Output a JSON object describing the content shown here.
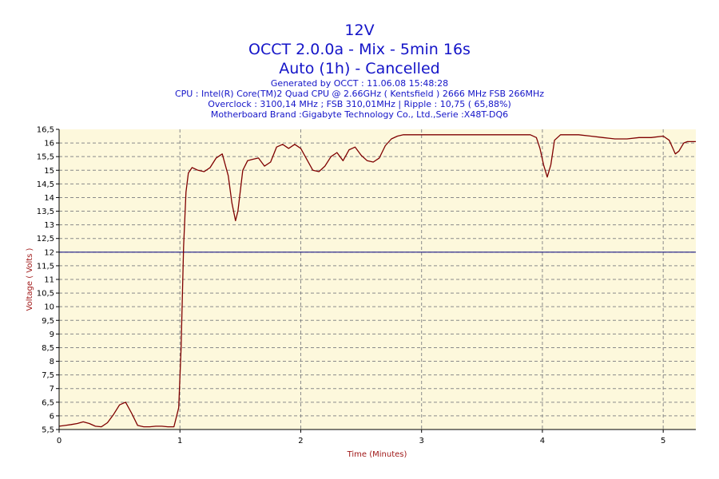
{
  "header": {
    "title": "12V",
    "line2": "OCCT 2.0.0a - Mix - 5min 16s",
    "line3": "Auto (1h) - Cancelled",
    "generated": "Generated by OCCT : 11.06.08 15:48:28",
    "cpu": "CPU : Intel(R) Core(TM)2 Quad CPU @ 2.66GHz ( Kentsfield ) 2666 MHz FSB 266MHz",
    "overclock": "Overclock : 3100,14 MHz ; FSB 310,01MHz | Ripple : 10,75 ( 65,88%)",
    "motherboard": "Motherboard Brand :Gigabyte Technology Co., Ltd.,Serie :X48T-DQ6"
  },
  "chart_data": {
    "type": "line",
    "xlabel": "Time (Minutes)",
    "ylabel": "Voltage ( Volts )",
    "xlim": [
      0,
      5.27
    ],
    "ylim": [
      5.5,
      16.5
    ],
    "x_ticks": [
      "0",
      "1",
      "2",
      "3",
      "4",
      "5"
    ],
    "y_ticks": [
      "5,5",
      "6",
      "6,5",
      "7",
      "7,5",
      "8",
      "8,5",
      "9",
      "9,5",
      "10",
      "10,5",
      "11",
      "11,5",
      "12",
      "12,5",
      "13",
      "13,5",
      "14",
      "14,5",
      "15",
      "15,5",
      "16",
      "16,5"
    ],
    "grid": true,
    "reference_line": {
      "y": 12,
      "color": "#00007f"
    },
    "series": [
      {
        "color": "#7f0000",
        "x": [
          0,
          0.05,
          0.1,
          0.15,
          0.2,
          0.25,
          0.3,
          0.35,
          0.4,
          0.45,
          0.5,
          0.55,
          0.6,
          0.65,
          0.7,
          0.75,
          0.8,
          0.85,
          0.9,
          0.95,
          0.99,
          1.01,
          1.03,
          1.05,
          1.07,
          1.1,
          1.15,
          1.2,
          1.25,
          1.3,
          1.35,
          1.4,
          1.43,
          1.46,
          1.48,
          1.52,
          1.56,
          1.6,
          1.65,
          1.7,
          1.75,
          1.8,
          1.85,
          1.9,
          1.95,
          2.0,
          2.05,
          2.1,
          2.15,
          2.2,
          2.25,
          2.3,
          2.35,
          2.4,
          2.45,
          2.5,
          2.55,
          2.6,
          2.65,
          2.7,
          2.75,
          2.8,
          2.85,
          2.9,
          3.0,
          3.1,
          3.2,
          3.3,
          3.4,
          3.5,
          3.6,
          3.7,
          3.8,
          3.9,
          3.95,
          3.98,
          4.01,
          4.04,
          4.07,
          4.1,
          4.15,
          4.2,
          4.3,
          4.4,
          4.5,
          4.6,
          4.7,
          4.8,
          4.9,
          5.0,
          5.05,
          5.08,
          5.1,
          5.13,
          5.17,
          5.2,
          5.27
        ],
        "values": [
          5.62,
          5.65,
          5.68,
          5.72,
          5.78,
          5.72,
          5.62,
          5.6,
          5.75,
          6.05,
          6.4,
          6.5,
          6.1,
          5.65,
          5.6,
          5.6,
          5.62,
          5.62,
          5.6,
          5.6,
          6.3,
          8.5,
          12.2,
          14.2,
          14.9,
          15.1,
          15.0,
          14.95,
          15.1,
          15.45,
          15.6,
          14.8,
          13.8,
          13.15,
          13.5,
          15.0,
          15.35,
          15.4,
          15.45,
          15.15,
          15.3,
          15.85,
          15.95,
          15.8,
          15.95,
          15.8,
          15.4,
          15.0,
          14.95,
          15.15,
          15.5,
          15.65,
          15.35,
          15.75,
          15.85,
          15.55,
          15.35,
          15.3,
          15.45,
          15.9,
          16.15,
          16.25,
          16.3,
          16.3,
          16.3,
          16.3,
          16.3,
          16.3,
          16.3,
          16.3,
          16.3,
          16.3,
          16.3,
          16.3,
          16.2,
          15.8,
          15.2,
          14.75,
          15.2,
          16.1,
          16.3,
          16.3,
          16.3,
          16.25,
          16.2,
          16.15,
          16.15,
          16.2,
          16.2,
          16.25,
          16.1,
          15.8,
          15.6,
          15.7,
          16.0,
          16.05,
          16.05
        ]
      }
    ]
  }
}
